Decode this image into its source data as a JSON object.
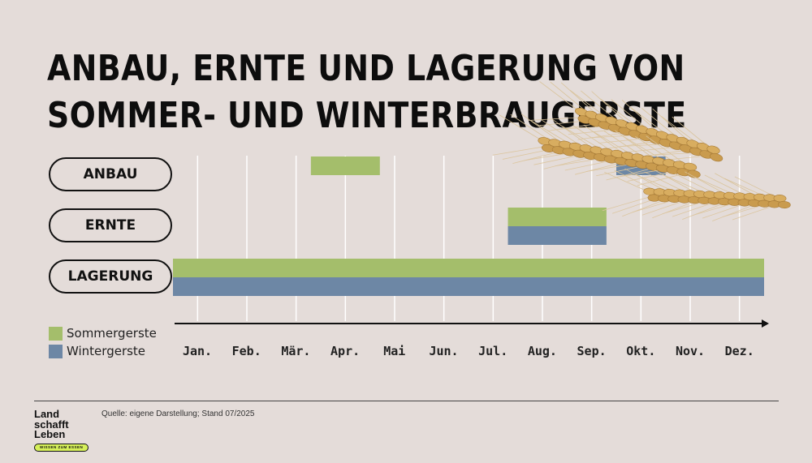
{
  "title_line1": "ANBAU, ERNTE  UND LAGERUNG  VON",
  "title_line2": "SOMMER- UND WINTERBRAUGERSTE",
  "source": "Quelle: eigene Darstellung; Stand 07/2025",
  "logo": {
    "line1": "Land",
    "line2": "schafft",
    "line3": "Leben",
    "tagline": "WISSEN ZUM ESSEN"
  },
  "colors": {
    "sommergerste": "#a4be6b",
    "wintergerste": "#6d87a5",
    "background": "#e4dcd9",
    "gridline": "#ffffff"
  },
  "chart_data": {
    "type": "gantt",
    "rows": [
      "ANBAU",
      "ERNTE",
      "LAGERUNG"
    ],
    "months": [
      "Jan.",
      "Feb.",
      "Mär.",
      "Apr.",
      "Mai",
      "Jun.",
      "Jul.",
      "Aug.",
      "Sep.",
      "Okt.",
      "Nov.",
      "Dez."
    ],
    "series": [
      {
        "name": "Sommergerste",
        "color": "#a4be6b",
        "bars": [
          {
            "row": "ANBAU",
            "start": 2.8,
            "end": 4.2
          },
          {
            "row": "ERNTE",
            "start": 6.8,
            "end": 8.8
          },
          {
            "row": "LAGERUNG",
            "start": 0.0,
            "end": 12.0
          }
        ]
      },
      {
        "name": "Wintergerste",
        "color": "#6d87a5",
        "bars": [
          {
            "row": "ANBAU",
            "start": 9.0,
            "end": 10.0
          },
          {
            "row": "ERNTE",
            "start": 6.8,
            "end": 8.8
          },
          {
            "row": "LAGERUNG",
            "start": 0.0,
            "end": 12.0
          }
        ]
      }
    ],
    "legend_position": "bottom-left",
    "grid": true
  }
}
